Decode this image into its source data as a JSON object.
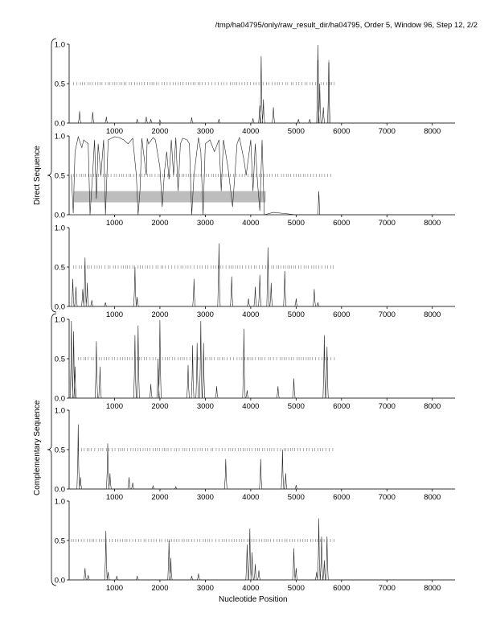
{
  "header": "/tmp/ha04795/only/raw_result_dir/ha04795, Order 5, Window 96, Step 12, 2/2",
  "xlabel": "Nucleotide Position",
  "groups": {
    "direct": "Direct Sequence",
    "complementary": "Complementary Sequence"
  },
  "chart_data": {
    "type": "line",
    "xlim": [
      0,
      8500
    ],
    "ylim": [
      0,
      1
    ],
    "x_ticks": [
      1000,
      2000,
      3000,
      4000,
      5000,
      6000,
      7000,
      8000
    ],
    "y_ticks": [
      "0.0",
      "0.5",
      "1.0"
    ],
    "panels": [
      {
        "group": "direct",
        "peaks": [
          [
            230,
            0.15
          ],
          [
            520,
            0.14
          ],
          [
            820,
            0.08
          ],
          [
            1500,
            0.05
          ],
          [
            1700,
            0.08
          ],
          [
            1800,
            0.05
          ],
          [
            2000,
            0.04
          ],
          [
            2700,
            0.07
          ],
          [
            3300,
            0.05
          ],
          [
            4050,
            0.06
          ],
          [
            4200,
            0.22
          ],
          [
            4230,
            0.85
          ],
          [
            4280,
            0.3
          ],
          [
            4500,
            0.2
          ],
          [
            5050,
            0.05
          ],
          [
            5300,
            0.05
          ],
          [
            5480,
            0.99
          ],
          [
            5520,
            0.5
          ],
          [
            5600,
            0.2
          ],
          [
            5720,
            0.77
          ]
        ],
        "shaded": [
          [
            5460,
            5500
          ],
          [
            5700,
            5740
          ]
        ],
        "ticks": [
          [
            100,
            5850
          ]
        ]
      },
      {
        "group": "direct",
        "profile": [
          [
            50,
            0.5
          ],
          [
            90,
            0.02
          ],
          [
            130,
            0.8
          ],
          [
            200,
            0.99
          ],
          [
            280,
            0.85
          ],
          [
            320,
            0.95
          ],
          [
            420,
            0.9
          ],
          [
            460,
            0.0
          ],
          [
            520,
            0.55
          ],
          [
            560,
            0.95
          ],
          [
            600,
            0.2
          ],
          [
            640,
            0.9
          ],
          [
            700,
            0.5
          ],
          [
            760,
            0.95
          ],
          [
            800,
            0.0
          ],
          [
            860,
            0.95
          ],
          [
            1000,
            0.99
          ],
          [
            1100,
            0.98
          ],
          [
            1200,
            0.95
          ],
          [
            1300,
            0.9
          ],
          [
            1400,
            0.97
          ],
          [
            1480,
            0.5
          ],
          [
            1520,
            0.0
          ],
          [
            1560,
            0.3
          ],
          [
            1600,
            0.97
          ],
          [
            1700,
            0.5
          ],
          [
            1720,
            0.97
          ],
          [
            1750,
            0.9
          ],
          [
            1850,
            0.98
          ],
          [
            1900,
            0.95
          ],
          [
            2000,
            0.6
          ],
          [
            2050,
            0.1
          ],
          [
            2100,
            0.55
          ],
          [
            2150,
            0.8
          ],
          [
            2200,
            0.45
          ],
          [
            2250,
            0.95
          ],
          [
            2300,
            0.5
          ],
          [
            2350,
            0.98
          ],
          [
            2400,
            0.3
          ],
          [
            2450,
            0.9
          ],
          [
            2500,
            0.97
          ],
          [
            2600,
            0.95
          ],
          [
            2650,
            0.9
          ],
          [
            2700,
            0.0
          ],
          [
            2750,
            0.5
          ],
          [
            2850,
            0.98
          ],
          [
            2900,
            0.8
          ],
          [
            2950,
            0.0
          ],
          [
            3000,
            0.9
          ],
          [
            3100,
            0.95
          ],
          [
            3200,
            0.8
          ],
          [
            3300,
            0.95
          ],
          [
            3350,
            0.3
          ],
          [
            3400,
            0.95
          ],
          [
            3500,
            0.6
          ],
          [
            3600,
            0.1
          ],
          [
            3650,
            0.5
          ],
          [
            3700,
            0.9
          ],
          [
            3750,
            0.98
          ],
          [
            3850,
            0.7
          ],
          [
            3900,
            0.5
          ],
          [
            4000,
            0.95
          ],
          [
            4050,
            0.3
          ],
          [
            4100,
            0.9
          ],
          [
            4150,
            0.4
          ],
          [
            4200,
            0.05
          ],
          [
            4250,
            0.95
          ],
          [
            4300,
            0.0
          ],
          [
            4500,
            0.03
          ],
          [
            5000,
            0.0
          ],
          [
            5480,
            0.0
          ],
          [
            5500,
            0.3
          ],
          [
            5520,
            0.0
          ],
          [
            8500,
            0.0
          ]
        ],
        "shaded": [
          [
            100,
            4330
          ]
        ],
        "ticks": [
          [
            50,
            5800
          ]
        ]
      },
      {
        "group": "direct",
        "peaks": [
          [
            80,
            0.35
          ],
          [
            150,
            0.25
          ],
          [
            300,
            0.22
          ],
          [
            350,
            0.62
          ],
          [
            400,
            0.3
          ],
          [
            500,
            0.08
          ],
          [
            800,
            0.05
          ],
          [
            1450,
            0.5
          ],
          [
            1500,
            0.12
          ],
          [
            2750,
            0.35
          ],
          [
            3300,
            0.8
          ],
          [
            3580,
            0.38
          ],
          [
            3950,
            0.1
          ],
          [
            4100,
            0.25
          ],
          [
            4200,
            0.4
          ],
          [
            4380,
            0.75
          ],
          [
            4450,
            0.3
          ],
          [
            4750,
            0.45
          ],
          [
            5000,
            0.1
          ],
          [
            5400,
            0.22
          ],
          [
            5480,
            0.05
          ]
        ],
        "shaded": [],
        "ticks": [
          [
            100,
            5850
          ]
        ]
      },
      {
        "group": "complementary",
        "peaks": [
          [
            50,
            0.98
          ],
          [
            100,
            0.85
          ],
          [
            130,
            0.4
          ],
          [
            600,
            0.72
          ],
          [
            680,
            0.4
          ],
          [
            1450,
            0.8
          ],
          [
            1520,
            0.92
          ],
          [
            1800,
            0.18
          ],
          [
            1960,
            0.5
          ],
          [
            2000,
            0.99
          ],
          [
            2620,
            0.42
          ],
          [
            2720,
            0.67
          ],
          [
            2820,
            0.7
          ],
          [
            2900,
            0.98
          ],
          [
            2960,
            0.7
          ],
          [
            3250,
            0.15
          ],
          [
            3850,
            0.88
          ],
          [
            3920,
            0.1
          ],
          [
            4600,
            0.15
          ],
          [
            4950,
            0.25
          ],
          [
            5620,
            0.8
          ],
          [
            5680,
            0.65
          ]
        ],
        "shaded": [],
        "ticks": [
          [
            200,
            5850
          ]
        ]
      },
      {
        "group": "complementary",
        "peaks": [
          [
            200,
            0.82
          ],
          [
            250,
            0.15
          ],
          [
            850,
            0.58
          ],
          [
            900,
            0.2
          ],
          [
            1320,
            0.15
          ],
          [
            1400,
            0.08
          ],
          [
            1850,
            0.04
          ],
          [
            2350,
            0.03
          ],
          [
            3450,
            0.38
          ],
          [
            4220,
            0.38
          ],
          [
            4700,
            0.5
          ],
          [
            4770,
            0.2
          ],
          [
            5000,
            0.05
          ]
        ],
        "shaded": [],
        "ticks": [
          [
            200,
            5850
          ]
        ]
      },
      {
        "group": "complementary",
        "peaks": [
          [
            350,
            0.15
          ],
          [
            420,
            0.06
          ],
          [
            810,
            0.62
          ],
          [
            860,
            0.1
          ],
          [
            1050,
            0.05
          ],
          [
            1500,
            0.05
          ],
          [
            2200,
            0.5
          ],
          [
            2240,
            0.28
          ],
          [
            2700,
            0.05
          ],
          [
            2850,
            0.08
          ],
          [
            3920,
            0.45
          ],
          [
            3980,
            0.65
          ],
          [
            4030,
            0.35
          ],
          [
            4100,
            0.2
          ],
          [
            4180,
            0.12
          ],
          [
            4950,
            0.4
          ],
          [
            5000,
            0.15
          ],
          [
            5450,
            0.1
          ],
          [
            5500,
            0.78
          ],
          [
            5560,
            0.55
          ],
          [
            5620,
            0.25
          ],
          [
            5680,
            0.55
          ]
        ],
        "shaded": [],
        "ticks": [
          [
            50,
            5850
          ]
        ]
      }
    ]
  }
}
